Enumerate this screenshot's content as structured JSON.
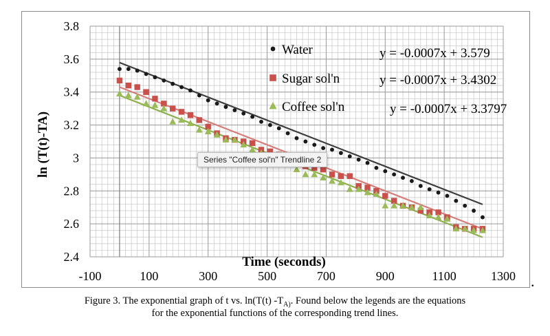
{
  "chart_data": {
    "type": "scatter",
    "title": "",
    "xlabel": "Time (seconds)",
    "ylabel": "ln (T(t)-TA)",
    "xlim": [
      -100,
      1300
    ],
    "ylim": [
      2.4,
      3.8
    ],
    "x_ticks": [
      "-100",
      "100",
      "300",
      "500",
      "700",
      "900",
      "1100",
      "1300"
    ],
    "y_ticks": [
      "2.4",
      "2.6",
      "2.8",
      "3",
      "3.2",
      "3.4",
      "3.6",
      "3.8"
    ],
    "x_minor_step": 20,
    "y_minor_step": 0.04,
    "x_tick_values": [
      -100,
      100,
      300,
      500,
      700,
      900,
      1100,
      1300
    ],
    "y_tick_values": [
      2.4,
      2.6,
      2.8,
      3.0,
      3.2,
      3.4,
      3.6,
      3.8
    ],
    "series": [
      {
        "name": "Water",
        "marker": "circle",
        "color": "#1a1a1a",
        "trend_color": "#3d3d3d",
        "equation": "y = -0.0007x + 3.579",
        "trend": {
          "slope": -0.0007,
          "intercept": 3.579
        },
        "x": [
          0,
          30,
          60,
          90,
          120,
          150,
          180,
          210,
          240,
          270,
          300,
          330,
          360,
          390,
          420,
          450,
          480,
          510,
          540,
          570,
          600,
          630,
          660,
          690,
          720,
          750,
          780,
          810,
          840,
          870,
          900,
          930,
          960,
          990,
          1020,
          1050,
          1080,
          1110,
          1140,
          1170,
          1200,
          1230
        ],
        "y": [
          3.54,
          3.54,
          3.53,
          3.51,
          3.49,
          3.47,
          3.45,
          3.43,
          3.41,
          3.38,
          3.35,
          3.33,
          3.31,
          3.29,
          3.27,
          3.25,
          3.22,
          3.2,
          3.18,
          3.15,
          3.12,
          3.1,
          3.08,
          3.06,
          3.05,
          3.03,
          3.01,
          2.99,
          2.97,
          2.94,
          2.92,
          2.9,
          2.88,
          2.86,
          2.83,
          2.81,
          2.79,
          2.77,
          2.74,
          2.71,
          2.68,
          2.64
        ]
      },
      {
        "name": "Sugar sol'n",
        "marker": "square",
        "color": "#c9504b",
        "trend_color": "#d67d79",
        "equation": "y = -0.0007x + 3.4302",
        "trend": {
          "slope": -0.0007,
          "intercept": 3.4302
        },
        "x": [
          0,
          30,
          60,
          90,
          120,
          150,
          180,
          210,
          240,
          270,
          300,
          330,
          360,
          390,
          420,
          450,
          480,
          510,
          540,
          570,
          600,
          630,
          660,
          690,
          720,
          750,
          780,
          810,
          840,
          870,
          900,
          930,
          960,
          990,
          1020,
          1050,
          1080,
          1110,
          1140,
          1170,
          1200,
          1230
        ],
        "y": [
          3.47,
          3.44,
          3.43,
          3.4,
          3.36,
          3.33,
          3.3,
          3.28,
          3.26,
          3.23,
          3.19,
          3.15,
          3.12,
          3.11,
          3.1,
          3.09,
          3.05,
          3.04,
          3.02,
          2.99,
          2.97,
          2.95,
          2.94,
          2.93,
          2.9,
          2.89,
          2.89,
          2.83,
          2.82,
          2.8,
          2.77,
          2.74,
          2.71,
          2.7,
          2.68,
          2.67,
          2.67,
          2.64,
          2.58,
          2.57,
          2.57,
          2.57
        ]
      },
      {
        "name": "Coffee sol'n",
        "marker": "triangle",
        "color": "#9bbb59",
        "trend_color": "#8db04c",
        "equation": "y = -0.0007x + 3.3797",
        "trend": {
          "slope": -0.0007,
          "intercept": 3.3797
        },
        "x": [
          0,
          30,
          60,
          90,
          120,
          150,
          180,
          210,
          240,
          270,
          300,
          330,
          360,
          390,
          420,
          450,
          480,
          510,
          540,
          570,
          600,
          630,
          660,
          690,
          720,
          750,
          780,
          810,
          840,
          870,
          900,
          930,
          960,
          990,
          1020,
          1050,
          1080,
          1110,
          1140,
          1170,
          1200,
          1230
        ],
        "y": [
          3.39,
          3.38,
          3.37,
          3.33,
          3.32,
          3.3,
          3.22,
          3.23,
          3.21,
          3.17,
          3.16,
          3.14,
          3.11,
          3.11,
          3.08,
          3.05,
          3.03,
          3.01,
          2.99,
          2.97,
          2.93,
          2.9,
          2.9,
          2.88,
          2.86,
          2.85,
          2.81,
          2.81,
          2.79,
          2.78,
          2.71,
          2.71,
          2.71,
          2.7,
          2.7,
          2.65,
          2.64,
          2.63,
          2.57,
          2.57,
          2.56,
          2.56
        ]
      }
    ],
    "tooltip": "Series \"Coffee sol'n\" Trendline 2"
  },
  "caption": {
    "line1_prefix": "Figure 3. The exponential graph of t vs. ln(T(t) -T",
    "line1_sub": "A)",
    "line1_suffix": ". Found below the legends are the equations",
    "line2": "for the exponential functions of the corresponding trend lines."
  },
  "trailing_mark": "."
}
